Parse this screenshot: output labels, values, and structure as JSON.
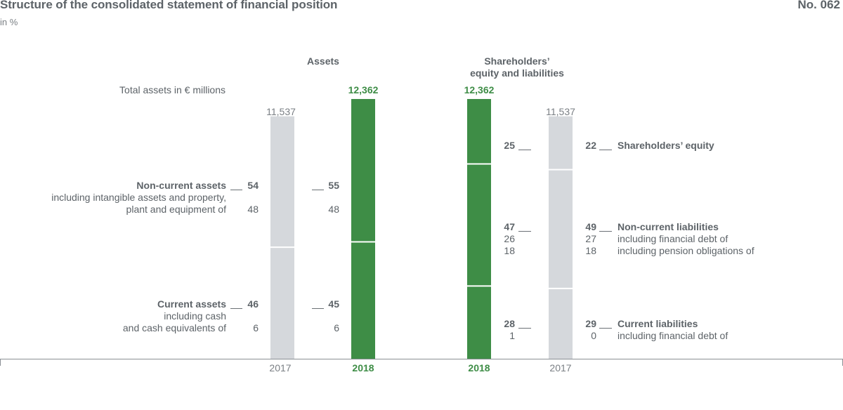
{
  "header": {
    "title": "Structure of the consolidated statement of financial position",
    "subtitle": "in %",
    "figure_number": "No. 062"
  },
  "colors": {
    "green": "#3e8d46",
    "grey_bar": "#d5d8dc",
    "text": "#5d6368",
    "separator": "#ffffff"
  },
  "chart_data": {
    "type": "bar",
    "stacked": true,
    "title": "Structure of the consolidated statement of financial position",
    "unit": "in %",
    "total_label": "Total assets in € millions",
    "groups": [
      {
        "name": "Assets",
        "columns": [
          {
            "year": "2017",
            "total": "11,537",
            "segments": [
              {
                "name": "Non-current assets",
                "value": 54,
                "sub": [
                  48
                ]
              },
              {
                "name": "Current assets",
                "value": 46,
                "sub": [
                  6
                ]
              }
            ]
          },
          {
            "year": "2018",
            "total": "12,362",
            "segments": [
              {
                "name": "Non-current assets",
                "value": 55,
                "sub": [
                  48
                ]
              },
              {
                "name": "Current assets",
                "value": 45,
                "sub": [
                  6
                ]
              }
            ]
          }
        ]
      },
      {
        "name": "Shareholders’ equity and liabilities",
        "columns": [
          {
            "year": "2018",
            "total": "12,362",
            "segments": [
              {
                "name": "Shareholders’ equity",
                "value": 25
              },
              {
                "name": "Non-current liabilities",
                "value": 47,
                "sub": [
                  26,
                  18
                ]
              },
              {
                "name": "Current liabilities",
                "value": 28,
                "sub": [
                  1
                ]
              }
            ]
          },
          {
            "year": "2017",
            "total": "11,537",
            "segments": [
              {
                "name": "Shareholders’ equity",
                "value": 22
              },
              {
                "name": "Non-current liabilities",
                "value": 49,
                "sub": [
                  27,
                  18
                ]
              },
              {
                "name": "Current liabilities",
                "value": 29,
                "sub": [
                  0
                ]
              }
            ]
          }
        ]
      }
    ]
  },
  "labels": {
    "assets_header": "Assets",
    "equity_header_line1": "Shareholders’",
    "equity_header_line2": "equity and liabilities",
    "total_assets": "Total assets in € millions",
    "non_current_assets": "Non-current assets",
    "nca_sub_line1": "including intangible assets and property,",
    "nca_sub_line2": "plant and equipment of",
    "current_assets": "Current assets",
    "ca_sub_line1": "including cash",
    "ca_sub_line2": "and cash equivalents of",
    "shareholders_equity": "Shareholders’ equity",
    "non_current_liabilities": "Non-current liabilities",
    "ncl_sub1": "including financial debt of",
    "ncl_sub2": "including pension obligations of",
    "current_liabilities": "Current liabilities",
    "cl_sub1": "including financial debt of"
  },
  "values": {
    "total_2017": "11,537",
    "total_2018": "12,362",
    "a17_nca": "54",
    "a17_nca_sub": "48",
    "a17_ca": "46",
    "a17_ca_sub": "6",
    "a18_nca": "55",
    "a18_nca_sub": "48",
    "a18_ca": "45",
    "a18_ca_sub": "6",
    "l18_eq": "25",
    "l18_ncl": "47",
    "l18_ncl_s1": "26",
    "l18_ncl_s2": "18",
    "l18_cl": "28",
    "l18_cl_s1": "1",
    "l17_eq": "22",
    "l17_ncl": "49",
    "l17_ncl_s1": "27",
    "l17_ncl_s2": "18",
    "l17_cl": "29",
    "l17_cl_s1": "0",
    "year_2017": "2017",
    "year_2018": "2018"
  }
}
